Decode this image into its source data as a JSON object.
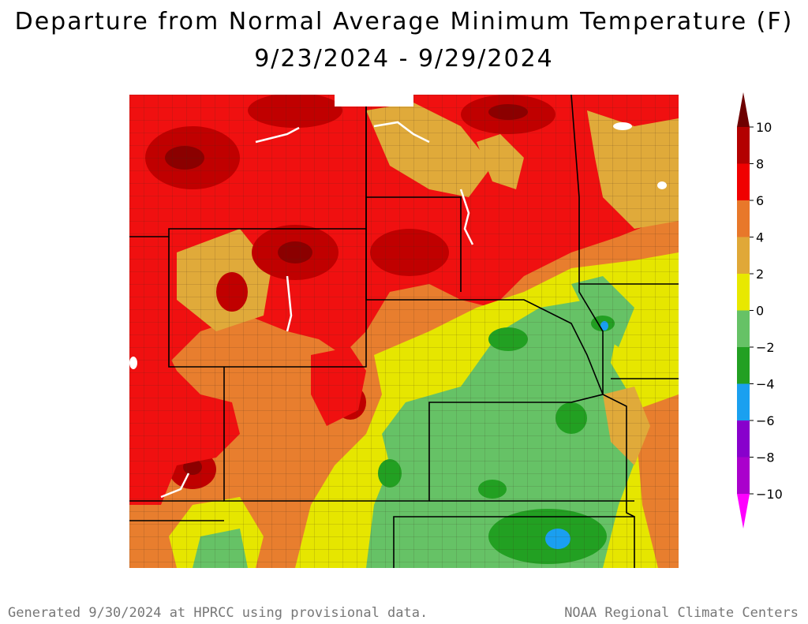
{
  "title_line1": "Departure from Normal Average Minimum Temperature (F)",
  "title_line2": "9/23/2024 - 9/29/2024",
  "footer_left": "Generated 9/30/2024 at HPRCC using provisional data.",
  "footer_right": "NOAA Regional Climate Centers",
  "legend": {
    "ticks": [
      "10",
      "8",
      "6",
      "4",
      "2",
      "0",
      "−2",
      "−4",
      "−6",
      "−8",
      "−10"
    ],
    "colors": [
      "#6e0000",
      "#b30000",
      "#f00000",
      "#e8782a",
      "#e0a838",
      "#e8e800",
      "#66c266",
      "#22a022",
      "#1aa0f0",
      "#8800cc",
      "#aa00cc",
      "#ff00ff"
    ]
  },
  "map_colors": {
    "very_warm": "#8b0000",
    "warm8": "#c00000",
    "warm6": "#f01010",
    "warm4": "#e87e2e",
    "warm2": "#e0aa3a",
    "near0": "#e6e600",
    "cool2": "#66c266",
    "cool4": "#22a022",
    "cool6": "#1a9ff0"
  }
}
